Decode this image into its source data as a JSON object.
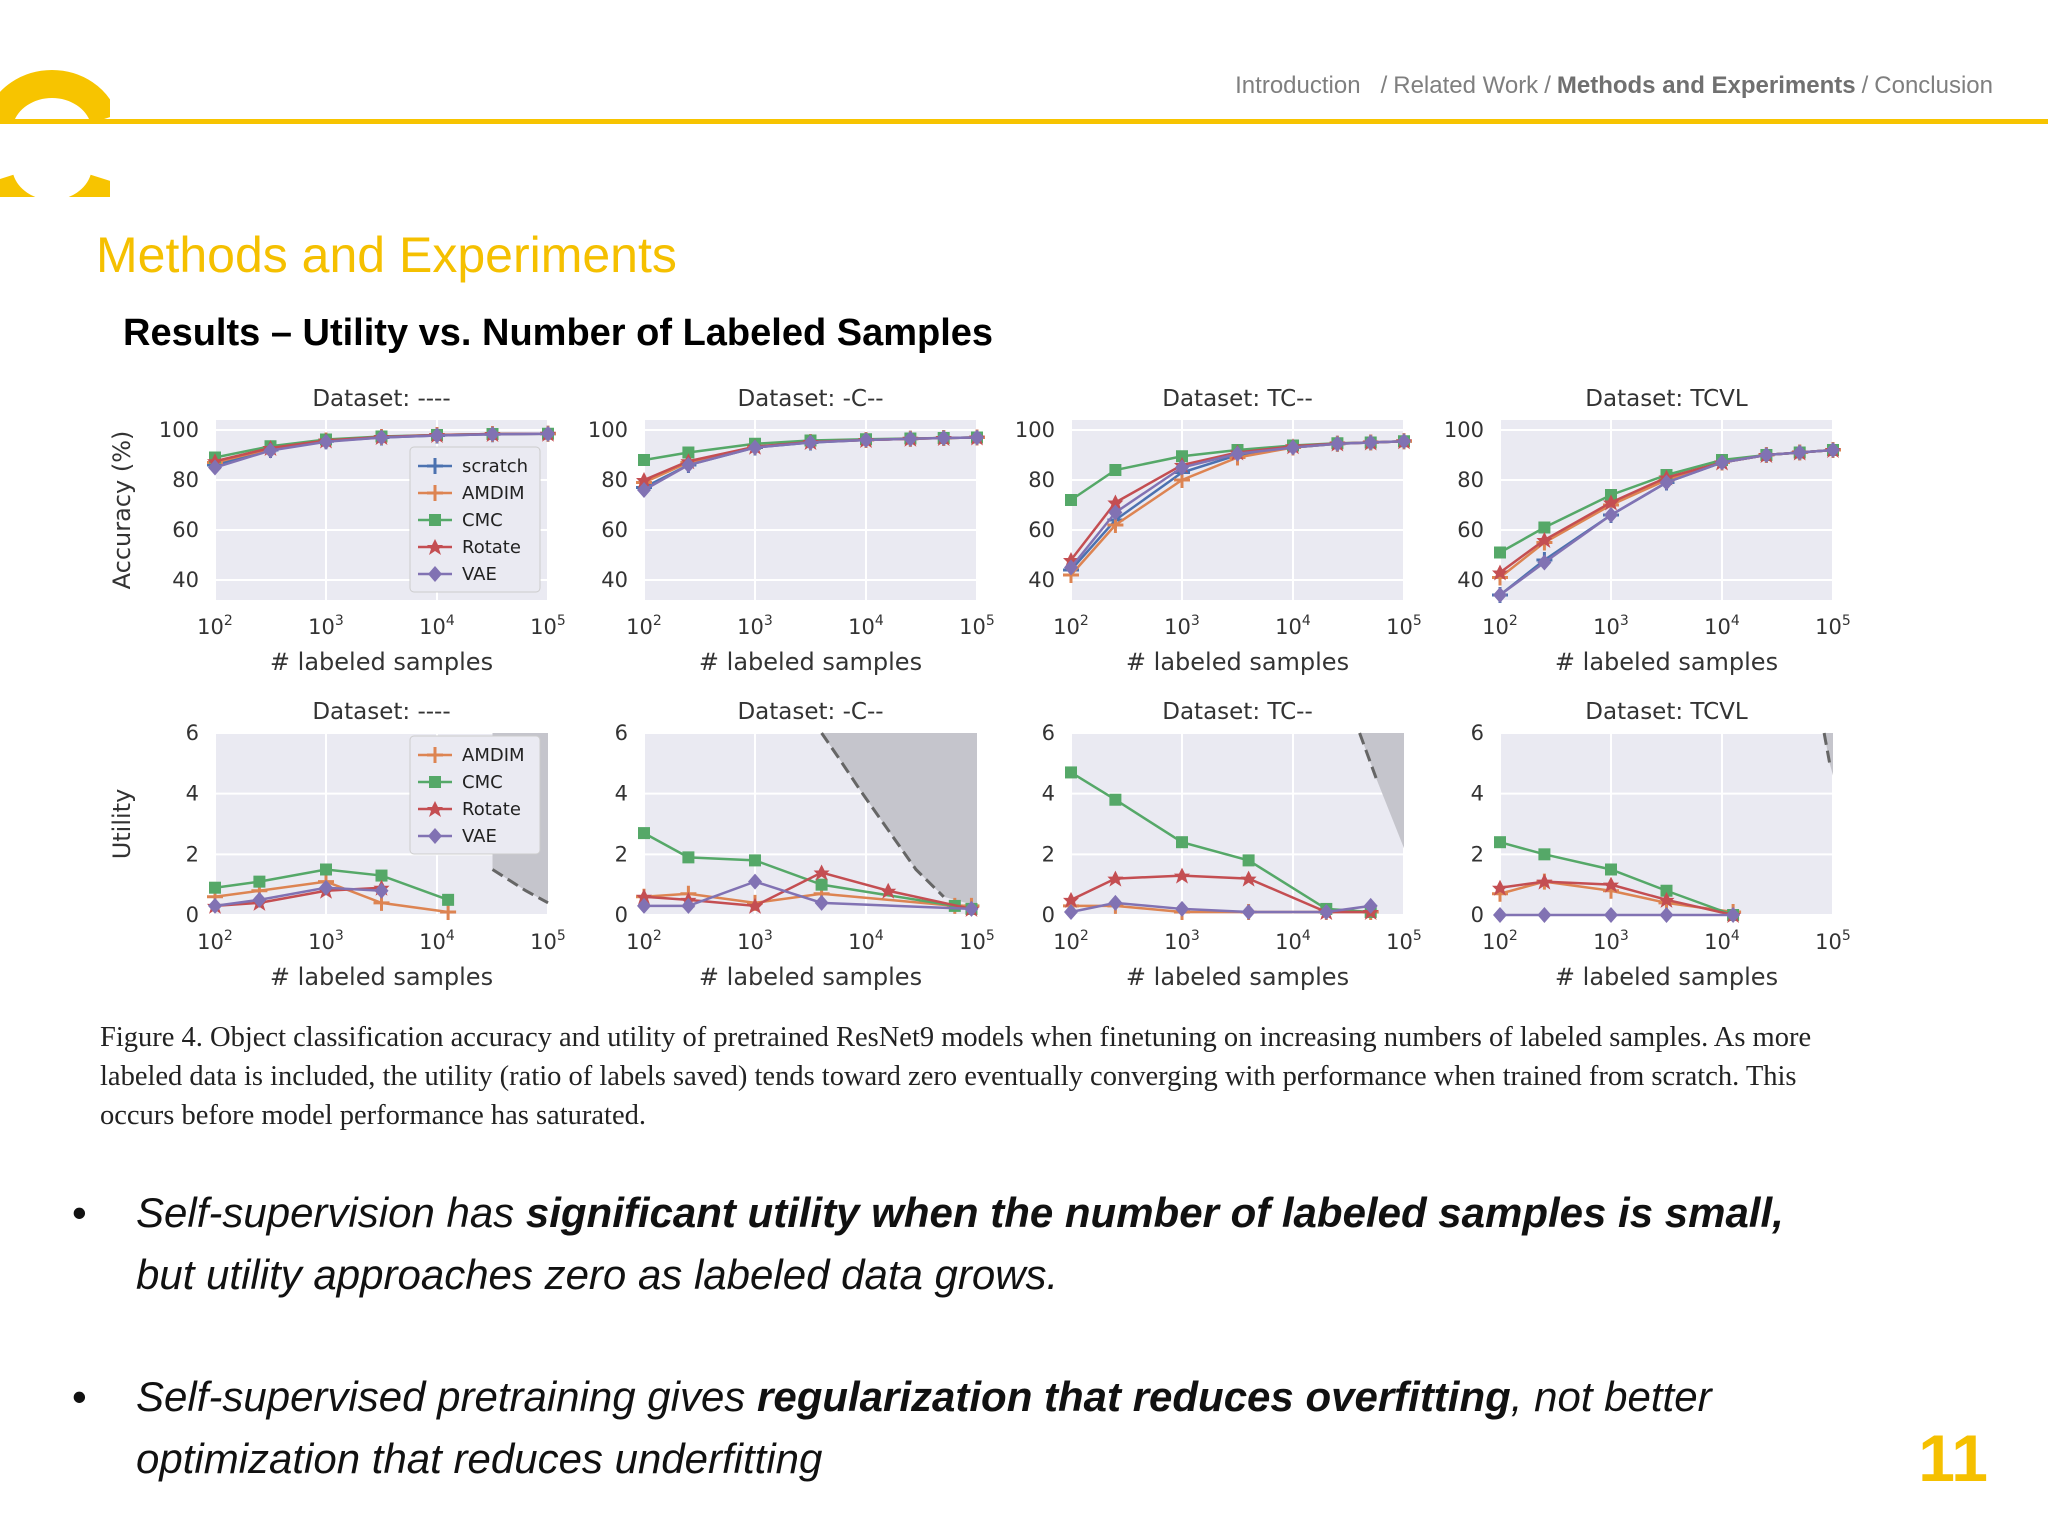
{
  "nav": {
    "items": [
      {
        "label": "Introduction"
      },
      {
        "label": "Related Work"
      },
      {
        "label": "Methods and Experiments"
      },
      {
        "label": "Conclusion"
      }
    ],
    "separator": "/",
    "current_index": 2
  },
  "slide": {
    "title": "Methods and Experiments",
    "subtitle": "Results – Utility vs. Number of Labeled Samples",
    "page_number": "11"
  },
  "colors": {
    "accent": "#f5c000",
    "scratch": "#4c72b0",
    "AMDIM": "#dd8452",
    "CMC": "#55a868",
    "Rotate": "#c44e52",
    "VAE": "#8172b3",
    "panel_bg": "#eaeaf2"
  },
  "chart_data": [
    {
      "type": "line",
      "row": "accuracy",
      "title": "Dataset: ----",
      "xlabel": "# labeled samples",
      "ylabel": "Accuracy (%)",
      "xscale": "log",
      "xlim": [
        100,
        100000
      ],
      "ylim": [
        32,
        104
      ],
      "xticks": [
        2,
        3,
        4,
        5
      ],
      "yticks": [
        40,
        60,
        80,
        100
      ],
      "legend": [
        "scratch",
        "AMDIM",
        "CMC",
        "Rotate",
        "VAE"
      ],
      "legend_position": "center-right",
      "series": [
        {
          "name": "scratch",
          "x": [
            2,
            2.5,
            3,
            3.5,
            4,
            4.5,
            5
          ],
          "y": [
            86,
            92,
            95.5,
            97,
            97.8,
            98.3,
            98.5
          ]
        },
        {
          "name": "AMDIM",
          "x": [
            2,
            2.5,
            3,
            3.5,
            4,
            4.5,
            5
          ],
          "y": [
            87,
            92.5,
            95.8,
            97.2,
            98,
            98.4,
            98.5
          ]
        },
        {
          "name": "CMC",
          "x": [
            2,
            2.5,
            3,
            3.5,
            4,
            4.5,
            5
          ],
          "y": [
            89,
            93.5,
            96.2,
            97.4,
            98,
            98.4,
            98.5
          ]
        },
        {
          "name": "Rotate",
          "x": [
            2,
            2.5,
            3,
            3.5,
            4,
            4.5,
            5
          ],
          "y": [
            87.5,
            92.8,
            95.8,
            97.2,
            98,
            98.4,
            98.5
          ]
        },
        {
          "name": "VAE",
          "x": [
            2,
            2.5,
            3,
            3.5,
            4,
            4.5,
            5
          ],
          "y": [
            85,
            91.8,
            95.3,
            97,
            97.8,
            98.3,
            98.5
          ]
        }
      ]
    },
    {
      "type": "line",
      "row": "accuracy",
      "title": "Dataset: -C--",
      "xlabel": "# labeled samples",
      "ylabel": "",
      "xscale": "log",
      "xlim": [
        100,
        100000
      ],
      "ylim": [
        32,
        104
      ],
      "xticks": [
        2,
        3,
        4,
        5
      ],
      "yticks": [
        40,
        60,
        80,
        100
      ],
      "series": [
        {
          "name": "scratch",
          "x": [
            2,
            2.4,
            3,
            3.5,
            4,
            4.4,
            4.7,
            5
          ],
          "y": [
            77,
            86,
            93,
            95,
            96,
            96.5,
            96.8,
            97
          ]
        },
        {
          "name": "AMDIM",
          "x": [
            2,
            2.4,
            3,
            3.5,
            4,
            4.4,
            4.7,
            5
          ],
          "y": [
            79,
            87,
            93.3,
            95.2,
            96,
            96.5,
            96.8,
            97
          ]
        },
        {
          "name": "CMC",
          "x": [
            2,
            2.4,
            3,
            3.5,
            4,
            4.4,
            4.7,
            5
          ],
          "y": [
            88,
            91,
            94.5,
            95.8,
            96.3,
            96.6,
            96.8,
            97
          ]
        },
        {
          "name": "Rotate",
          "x": [
            2,
            2.4,
            3,
            3.5,
            4,
            4.4,
            4.7,
            5
          ],
          "y": [
            80,
            87.5,
            93.3,
            95.2,
            96,
            96.5,
            96.8,
            97
          ]
        },
        {
          "name": "VAE",
          "x": [
            2,
            2.4,
            3,
            3.5,
            4,
            4.4,
            4.7,
            5
          ],
          "y": [
            76,
            86,
            93,
            95,
            96,
            96.5,
            96.8,
            97
          ]
        }
      ]
    },
    {
      "type": "line",
      "row": "accuracy",
      "title": "Dataset: TC--",
      "xlabel": "# labeled samples",
      "ylabel": "",
      "xscale": "log",
      "xlim": [
        100,
        100000
      ],
      "ylim": [
        32,
        104
      ],
      "xticks": [
        2,
        3,
        4,
        5
      ],
      "yticks": [
        40,
        60,
        80,
        100
      ],
      "series": [
        {
          "name": "scratch",
          "x": [
            2,
            2.4,
            3,
            3.5,
            4,
            4.4,
            4.7,
            5
          ],
          "y": [
            44,
            64,
            83,
            90,
            93,
            94.5,
            95,
            95.5
          ]
        },
        {
          "name": "AMDIM",
          "x": [
            2,
            2.4,
            3,
            3.5,
            4,
            4.4,
            4.7,
            5
          ],
          "y": [
            42,
            62,
            80,
            89,
            93,
            94.5,
            95,
            95.5
          ]
        },
        {
          "name": "CMC",
          "x": [
            2,
            2.4,
            3,
            3.5,
            4,
            4.4,
            4.7,
            5
          ],
          "y": [
            72,
            84,
            89.5,
            92,
            93.8,
            94.7,
            95,
            95.5
          ]
        },
        {
          "name": "Rotate",
          "x": [
            2,
            2.4,
            3,
            3.5,
            4,
            4.4,
            4.7,
            5
          ],
          "y": [
            48,
            71,
            86,
            91,
            93.5,
            94.6,
            95,
            95.5
          ]
        },
        {
          "name": "VAE",
          "x": [
            2,
            2.4,
            3,
            3.5,
            4,
            4.4,
            4.7,
            5
          ],
          "y": [
            45,
            67,
            85,
            90.5,
            93,
            94.5,
            95,
            95.5
          ]
        }
      ]
    },
    {
      "type": "line",
      "row": "accuracy",
      "title": "Dataset: TCVL",
      "xlabel": "# labeled samples",
      "ylabel": "",
      "xscale": "log",
      "xlim": [
        100,
        100000
      ],
      "ylim": [
        32,
        104
      ],
      "xticks": [
        2,
        3,
        4,
        5
      ],
      "yticks": [
        40,
        60,
        80,
        100
      ],
      "series": [
        {
          "name": "scratch",
          "x": [
            2,
            2.4,
            3,
            3.5,
            4,
            4.4,
            4.7,
            5
          ],
          "y": [
            34,
            48,
            66,
            79,
            87,
            90,
            91,
            92
          ]
        },
        {
          "name": "AMDIM",
          "x": [
            2,
            2.4,
            3,
            3.5,
            4,
            4.4,
            4.7,
            5
          ],
          "y": [
            41,
            55,
            70,
            80,
            87,
            90,
            91,
            92
          ]
        },
        {
          "name": "CMC",
          "x": [
            2,
            2.4,
            3,
            3.5,
            4,
            4.4,
            4.7,
            5
          ],
          "y": [
            51,
            61,
            74,
            82,
            88,
            90,
            91,
            92
          ]
        },
        {
          "name": "Rotate",
          "x": [
            2,
            2.4,
            3,
            3.5,
            4,
            4.4,
            4.7,
            5
          ],
          "y": [
            43,
            56,
            71,
            81,
            87,
            90,
            91,
            92
          ]
        },
        {
          "name": "VAE",
          "x": [
            2,
            2.4,
            3,
            3.5,
            4,
            4.4,
            4.7,
            5
          ],
          "y": [
            34,
            47,
            66,
            79,
            87,
            90,
            91,
            92
          ]
        }
      ]
    },
    {
      "type": "line",
      "row": "utility",
      "title": "Dataset: ----",
      "xlabel": "# labeled samples",
      "ylabel": "Utility",
      "xscale": "log",
      "xlim": [
        100,
        100000
      ],
      "ylim": [
        0,
        6
      ],
      "xticks": [
        2,
        3,
        4,
        5
      ],
      "yticks": [
        0,
        2,
        4,
        6
      ],
      "legend": [
        "AMDIM",
        "CMC",
        "Rotate",
        "VAE"
      ],
      "legend_position": "top-right",
      "shade": [
        [
          4.5,
          1.5
        ],
        [
          4.8,
          0.8
        ],
        [
          5,
          0.4
        ],
        [
          5,
          6
        ],
        [
          4.5,
          6
        ]
      ],
      "series": [
        {
          "name": "AMDIM",
          "x": [
            2,
            2.4,
            3,
            3.5,
            4.1
          ],
          "y": [
            0.6,
            0.8,
            1.1,
            0.4,
            0.1
          ]
        },
        {
          "name": "CMC",
          "x": [
            2,
            2.4,
            3,
            3.5,
            4.1
          ],
          "y": [
            0.9,
            1.1,
            1.5,
            1.3,
            0.5
          ]
        },
        {
          "name": "Rotate",
          "x": [
            2,
            2.4,
            3,
            3.5
          ],
          "y": [
            0.3,
            0.4,
            0.8,
            0.9
          ]
        },
        {
          "name": "VAE",
          "x": [
            2,
            2.4,
            3,
            3.5
          ],
          "y": [
            0.3,
            0.5,
            0.9,
            0.8
          ]
        }
      ]
    },
    {
      "type": "line",
      "row": "utility",
      "title": "Dataset: -C--",
      "xlabel": "# labeled samples",
      "ylabel": "",
      "xscale": "log",
      "xlim": [
        100,
        100000
      ],
      "ylim": [
        0,
        6
      ],
      "xticks": [
        2,
        3,
        4,
        5
      ],
      "yticks": [
        0,
        2,
        4,
        6
      ],
      "shade": [
        [
          3.6,
          6
        ],
        [
          3.75,
          5.2
        ],
        [
          3.95,
          4.1
        ],
        [
          4.2,
          2.8
        ],
        [
          4.45,
          1.5
        ],
        [
          4.7,
          0.6
        ],
        [
          5,
          0.3
        ],
        [
          5,
          6
        ]
      ],
      "series": [
        {
          "name": "AMDIM",
          "x": [
            2,
            2.4,
            3,
            3.6,
            4.8,
            4.95
          ],
          "y": [
            0.6,
            0.7,
            0.4,
            0.7,
            0.3,
            0.3
          ]
        },
        {
          "name": "CMC",
          "x": [
            2,
            2.4,
            3,
            3.6,
            4.8,
            4.95
          ],
          "y": [
            2.7,
            1.9,
            1.8,
            1.0,
            0.3,
            0.2
          ]
        },
        {
          "name": "Rotate",
          "x": [
            2,
            2.4,
            3,
            3.6,
            4.2,
            4.95
          ],
          "y": [
            0.6,
            0.5,
            0.3,
            1.4,
            0.8,
            0.2
          ]
        },
        {
          "name": "VAE",
          "x": [
            2,
            2.4,
            3,
            3.6,
            4.95
          ],
          "y": [
            0.3,
            0.3,
            1.1,
            0.4,
            0.2
          ]
        }
      ]
    },
    {
      "type": "line",
      "row": "utility",
      "title": "Dataset: TC--",
      "xlabel": "# labeled samples",
      "ylabel": "",
      "xscale": "log",
      "xlim": [
        100,
        100000
      ],
      "ylim": [
        0,
        6
      ],
      "xticks": [
        2,
        3,
        4,
        5
      ],
      "yticks": [
        0,
        2,
        4,
        6
      ],
      "shade": [
        [
          4.6,
          6
        ],
        [
          4.75,
          4.5
        ],
        [
          5,
          2.2
        ],
        [
          5,
          6
        ]
      ],
      "series": [
        {
          "name": "AMDIM",
          "x": [
            2,
            2.4,
            3,
            3.6,
            4.3,
            4.7
          ],
          "y": [
            0.3,
            0.3,
            0.1,
            0.1,
            0.1,
            0.1
          ]
        },
        {
          "name": "CMC",
          "x": [
            2,
            2.4,
            3,
            3.6,
            4.3,
            4.7
          ],
          "y": [
            4.7,
            3.8,
            2.4,
            1.8,
            0.2,
            0.1
          ]
        },
        {
          "name": "Rotate",
          "x": [
            2,
            2.4,
            3,
            3.6,
            4.3,
            4.7
          ],
          "y": [
            0.5,
            1.2,
            1.3,
            1.2,
            0.1,
            0.1
          ]
        },
        {
          "name": "VAE",
          "x": [
            2,
            2.4,
            3,
            3.6,
            4.3,
            4.7
          ],
          "y": [
            0.1,
            0.4,
            0.2,
            0.1,
            0.1,
            0.3
          ]
        }
      ]
    },
    {
      "type": "line",
      "row": "utility",
      "title": "Dataset: TCVL",
      "xlabel": "# labeled samples",
      "ylabel": "",
      "xscale": "log",
      "xlim": [
        100,
        100000
      ],
      "ylim": [
        0,
        6
      ],
      "xticks": [
        2,
        3,
        4,
        5
      ],
      "yticks": [
        0,
        2,
        4,
        6
      ],
      "shade": [
        [
          4.92,
          6
        ],
        [
          4.97,
          5
        ],
        [
          5,
          4.6
        ],
        [
          5,
          6
        ]
      ],
      "series": [
        {
          "name": "AMDIM",
          "x": [
            2,
            2.4,
            3,
            3.5,
            4.1
          ],
          "y": [
            0.7,
            1.1,
            0.8,
            0.4,
            0.1
          ]
        },
        {
          "name": "CMC",
          "x": [
            2,
            2.4,
            3,
            3.5,
            4.1
          ],
          "y": [
            2.4,
            2.0,
            1.5,
            0.8,
            0.0
          ]
        },
        {
          "name": "Rotate",
          "x": [
            2,
            2.4,
            3,
            3.5,
            4.1
          ],
          "y": [
            0.9,
            1.1,
            1.0,
            0.5,
            0.0
          ]
        },
        {
          "name": "VAE",
          "x": [
            2,
            2.4,
            3,
            3.5,
            4.1
          ],
          "y": [
            0.0,
            0.0,
            0.0,
            0.0,
            0.0
          ]
        }
      ]
    }
  ],
  "caption": "Figure 4. Object classification accuracy and utility of pretrained ResNet9 models when finetuning on increasing numbers of labeled samples. As more labeled data is included, the utility (ratio of labels saved) tends toward zero eventually converging with performance when trained from scratch. This occurs before model performance has saturated.",
  "bullets": [
    {
      "pre": "Self-supervision has ",
      "bold": "significant utility when the number of labeled samples is small,",
      "post": " but utility approaches zero as labeled data grows."
    },
    {
      "pre": "Self-supervised pretraining gives ",
      "bold": "regularization that reduces overfitting",
      "post": ", not better optimization that reduces underfitting"
    }
  ],
  "bullet_symbol": "•"
}
